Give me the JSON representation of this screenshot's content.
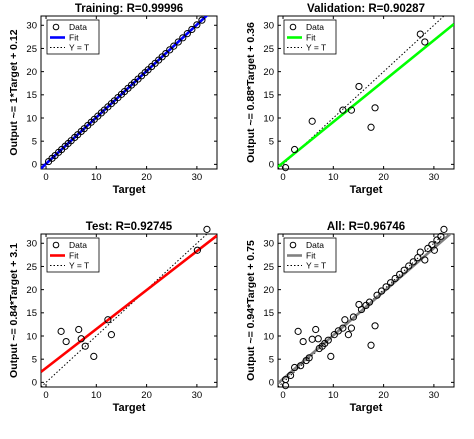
{
  "chart_data": [
    {
      "type": "scatter",
      "title": "Training: R=0.99996",
      "xlabel": "Target",
      "ylabel": "Output ~= 1*Target + 0.12",
      "xlim": [
        -1,
        34
      ],
      "ylim": [
        -1,
        32
      ],
      "xticks": [
        0,
        10,
        20,
        30
      ],
      "yticks": [
        0,
        5,
        10,
        15,
        20,
        25,
        30
      ],
      "fit": {
        "slope": 1.0,
        "intercept": 0.12,
        "color": "#0000ff"
      },
      "legend": {
        "position": "top-left",
        "entries": [
          "Data",
          "Fit",
          "Y = T"
        ]
      },
      "points": [
        [
          0.5,
          0.6
        ],
        [
          1.2,
          1.3
        ],
        [
          1.8,
          1.9
        ],
        [
          2.5,
          2.6
        ],
        [
          3.1,
          3.2
        ],
        [
          3.8,
          3.9
        ],
        [
          4.4,
          4.5
        ],
        [
          5.0,
          5.1
        ],
        [
          5.7,
          5.8
        ],
        [
          6.3,
          6.4
        ],
        [
          7.0,
          7.1
        ],
        [
          7.6,
          7.7
        ],
        [
          8.3,
          8.4
        ],
        [
          9.0,
          9.1
        ],
        [
          9.6,
          9.7
        ],
        [
          10.3,
          10.4
        ],
        [
          11.0,
          11.1
        ],
        [
          11.6,
          11.7
        ],
        [
          12.3,
          12.4
        ],
        [
          13.0,
          13.1
        ],
        [
          13.6,
          13.7
        ],
        [
          14.3,
          14.4
        ],
        [
          15.0,
          15.1
        ],
        [
          15.6,
          15.7
        ],
        [
          16.3,
          16.4
        ],
        [
          17.0,
          17.1
        ],
        [
          17.6,
          17.7
        ],
        [
          18.3,
          18.4
        ],
        [
          19.0,
          19.1
        ],
        [
          19.7,
          19.8
        ],
        [
          20.3,
          20.4
        ],
        [
          21.0,
          21.1
        ],
        [
          21.7,
          21.8
        ],
        [
          22.4,
          22.5
        ],
        [
          23.1,
          23.2
        ],
        [
          23.8,
          23.9
        ],
        [
          24.6,
          24.7
        ],
        [
          25.4,
          25.5
        ],
        [
          26.3,
          26.4
        ],
        [
          27.2,
          27.3
        ],
        [
          28.1,
          28.2
        ],
        [
          29.0,
          29.1
        ],
        [
          30.0,
          30.1
        ],
        [
          31.0,
          31.1
        ]
      ]
    },
    {
      "type": "scatter",
      "title": "Validation: R=0.90287",
      "xlabel": "Target",
      "ylabel": "Output ~= 0.88*Target + 0.36",
      "xlim": [
        -1,
        34
      ],
      "ylim": [
        -1,
        32
      ],
      "xticks": [
        0,
        10,
        20,
        30
      ],
      "yticks": [
        0,
        5,
        10,
        15,
        20,
        25,
        30
      ],
      "fit": {
        "slope": 0.88,
        "intercept": 0.36,
        "color": "#00ff00"
      },
      "legend": {
        "position": "top-left",
        "entries": [
          "Data",
          "Fit",
          "Y = T"
        ]
      },
      "points": [
        [
          0.5,
          -0.7
        ],
        [
          2.3,
          3.2
        ],
        [
          5.8,
          9.3
        ],
        [
          11.9,
          11.7
        ],
        [
          13.6,
          11.7
        ],
        [
          15.1,
          16.8
        ],
        [
          17.5,
          8.0
        ],
        [
          18.3,
          12.2
        ],
        [
          27.3,
          28.1
        ],
        [
          28.2,
          26.4
        ]
      ]
    },
    {
      "type": "scatter",
      "title": "Test: R=0.92745",
      "xlabel": "Target",
      "ylabel": "Output ~= 0.84*Target + 3.1",
      "xlim": [
        -1,
        34
      ],
      "ylim": [
        -1,
        32
      ],
      "xticks": [
        0,
        10,
        20,
        30
      ],
      "yticks": [
        0,
        5,
        10,
        15,
        20,
        25,
        30
      ],
      "fit": {
        "slope": 0.84,
        "intercept": 3.1,
        "color": "#ff0000"
      },
      "legend": {
        "position": "top-left",
        "entries": [
          "Data",
          "Fit",
          "Y = T"
        ]
      },
      "points": [
        [
          3.0,
          11.0
        ],
        [
          4.0,
          8.8
        ],
        [
          6.5,
          11.4
        ],
        [
          7.0,
          9.4
        ],
        [
          7.8,
          7.8
        ],
        [
          9.5,
          5.6
        ],
        [
          12.3,
          13.5
        ],
        [
          13.0,
          10.3
        ],
        [
          30.1,
          28.5
        ],
        [
          32.0,
          33.0
        ]
      ]
    },
    {
      "type": "scatter",
      "title": "All: R=0.96746",
      "xlabel": "Target",
      "ylabel": "Output ~= 0.94*Target + 0.75",
      "xlim": [
        -1,
        34
      ],
      "ylim": [
        -1,
        32
      ],
      "xticks": [
        0,
        10,
        20,
        30
      ],
      "yticks": [
        0,
        5,
        10,
        15,
        20,
        25,
        30
      ],
      "fit": {
        "slope": 0.94,
        "intercept": 0.75,
        "color": "#808080"
      },
      "legend": {
        "position": "top-left",
        "entries": [
          "Data",
          "Fit",
          "Y = T"
        ]
      },
      "points": [
        [
          0.5,
          -0.7
        ],
        [
          0.5,
          0.6
        ],
        [
          1.5,
          1.5
        ],
        [
          2.3,
          3.2
        ],
        [
          3.0,
          11.0
        ],
        [
          3.5,
          3.6
        ],
        [
          4.0,
          8.8
        ],
        [
          4.6,
          4.7
        ],
        [
          5.2,
          5.3
        ],
        [
          5.8,
          9.3
        ],
        [
          6.5,
          11.4
        ],
        [
          7.0,
          9.4
        ],
        [
          7.2,
          7.3
        ],
        [
          7.8,
          7.8
        ],
        [
          8.3,
          8.4
        ],
        [
          9.0,
          9.1
        ],
        [
          9.5,
          5.6
        ],
        [
          10.2,
          10.3
        ],
        [
          11.0,
          11.1
        ],
        [
          11.9,
          11.7
        ],
        [
          12.3,
          13.5
        ],
        [
          13.0,
          10.3
        ],
        [
          13.6,
          11.7
        ],
        [
          14.0,
          14.1
        ],
        [
          15.1,
          16.8
        ],
        [
          15.6,
          15.7
        ],
        [
          16.5,
          16.6
        ],
        [
          17.2,
          17.3
        ],
        [
          17.5,
          8.0
        ],
        [
          18.3,
          12.2
        ],
        [
          18.7,
          18.8
        ],
        [
          19.6,
          19.7
        ],
        [
          20.5,
          20.6
        ],
        [
          21.4,
          21.5
        ],
        [
          22.3,
          22.4
        ],
        [
          23.2,
          23.3
        ],
        [
          24.1,
          24.2
        ],
        [
          25.0,
          25.1
        ],
        [
          25.9,
          26.0
        ],
        [
          26.8,
          26.9
        ],
        [
          27.3,
          28.1
        ],
        [
          28.2,
          26.4
        ],
        [
          28.8,
          28.9
        ],
        [
          29.6,
          29.7
        ],
        [
          30.1,
          28.5
        ],
        [
          30.6,
          30.7
        ],
        [
          31.4,
          31.5
        ],
        [
          32.0,
          33.0
        ]
      ]
    }
  ]
}
